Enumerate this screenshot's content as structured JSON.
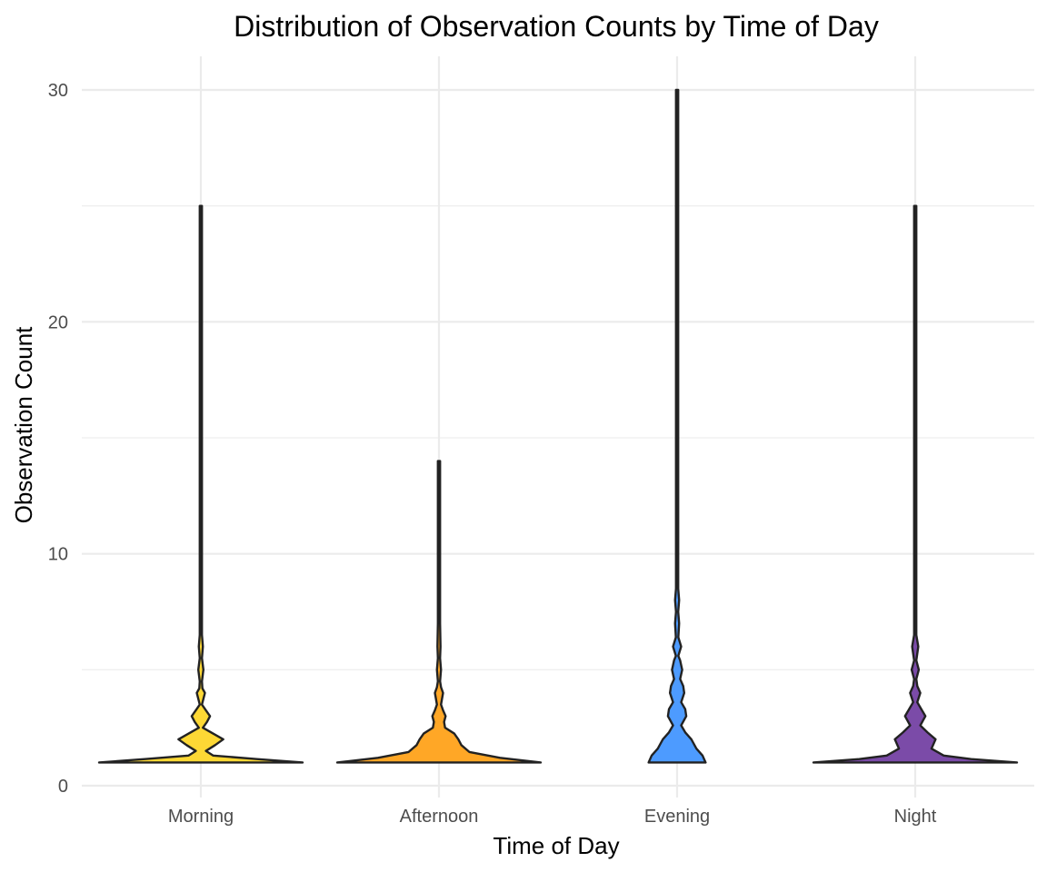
{
  "chart_data": {
    "type": "violin",
    "title": "Distribution of Observation Counts by Time of Day",
    "xlabel": "Time of Day",
    "ylabel": "Observation Count",
    "categories": [
      "Morning",
      "Afternoon",
      "Evening",
      "Night"
    ],
    "ylim": [
      -0.5,
      30
    ],
    "y_ticks": [
      0,
      10,
      20,
      30
    ],
    "grid": true,
    "legend": "none",
    "series": [
      {
        "name": "Morning",
        "color": "#FDD835",
        "min": 1,
        "max": 25,
        "density_profile": [
          [
            1,
            1.0
          ],
          [
            1.15,
            0.55
          ],
          [
            1.3,
            0.12
          ],
          [
            1.5,
            0.05
          ],
          [
            1.75,
            0.14
          ],
          [
            2,
            0.22
          ],
          [
            2.25,
            0.12
          ],
          [
            2.5,
            0.02
          ],
          [
            2.75,
            0.06
          ],
          [
            3,
            0.09
          ],
          [
            3.25,
            0.05
          ],
          [
            3.5,
            0.01
          ],
          [
            4,
            0.04
          ],
          [
            4.2,
            0.015
          ],
          [
            4.5,
            0.01
          ],
          [
            5,
            0.025
          ],
          [
            5.5,
            0.006
          ],
          [
            6,
            0.02
          ],
          [
            6.5,
            0.005
          ],
          [
            8,
            0.006
          ],
          [
            10,
            0.004
          ],
          [
            12,
            0.003
          ],
          [
            25,
            0.003
          ]
        ]
      },
      {
        "name": "Afternoon",
        "color": "#FFA726",
        "min": 1,
        "max": 14,
        "density_profile": [
          [
            1,
            1.0
          ],
          [
            1.2,
            0.6
          ],
          [
            1.45,
            0.3
          ],
          [
            1.75,
            0.22
          ],
          [
            2,
            0.19
          ],
          [
            2.25,
            0.15
          ],
          [
            2.5,
            0.06
          ],
          [
            2.75,
            0.05
          ],
          [
            3,
            0.065
          ],
          [
            3.25,
            0.04
          ],
          [
            3.5,
            0.02
          ],
          [
            4,
            0.04
          ],
          [
            4.25,
            0.02
          ],
          [
            4.5,
            0.01
          ],
          [
            5,
            0.02
          ],
          [
            5.5,
            0.005
          ],
          [
            6,
            0.015
          ],
          [
            7,
            0.004
          ],
          [
            8,
            0.005
          ],
          [
            14,
            0.003
          ]
        ]
      },
      {
        "name": "Evening",
        "color": "#4D9BFF",
        "min": 1,
        "max": 30,
        "density_profile": [
          [
            1,
            0.28
          ],
          [
            1.3,
            0.25
          ],
          [
            1.6,
            0.19
          ],
          [
            2,
            0.14
          ],
          [
            2.3,
            0.08
          ],
          [
            2.6,
            0.04
          ],
          [
            3,
            0.09
          ],
          [
            3.3,
            0.08
          ],
          [
            3.6,
            0.04
          ],
          [
            4,
            0.07
          ],
          [
            4.3,
            0.06
          ],
          [
            4.6,
            0.03
          ],
          [
            5,
            0.05
          ],
          [
            5.4,
            0.03
          ],
          [
            5.6,
            0.012
          ],
          [
            6,
            0.04
          ],
          [
            6.4,
            0.012
          ],
          [
            7,
            0.02
          ],
          [
            7.5,
            0.01
          ],
          [
            8,
            0.02
          ],
          [
            8.5,
            0.005
          ],
          [
            10,
            0.004
          ],
          [
            30,
            0.003
          ]
        ]
      },
      {
        "name": "Night",
        "color": "#7B4BA8",
        "min": 1,
        "max": 25,
        "density_profile": [
          [
            1,
            1.0
          ],
          [
            1.15,
            0.55
          ],
          [
            1.3,
            0.28
          ],
          [
            1.6,
            0.16
          ],
          [
            2,
            0.2
          ],
          [
            2.3,
            0.12
          ],
          [
            2.6,
            0.05
          ],
          [
            3,
            0.1
          ],
          [
            3.3,
            0.06
          ],
          [
            3.6,
            0.02
          ],
          [
            4,
            0.05
          ],
          [
            4.3,
            0.02
          ],
          [
            4.6,
            0.01
          ],
          [
            5,
            0.035
          ],
          [
            5.4,
            0.01
          ],
          [
            6,
            0.03
          ],
          [
            6.5,
            0.006
          ],
          [
            7,
            0.01
          ],
          [
            9,
            0.004
          ],
          [
            25,
            0.003
          ]
        ]
      }
    ]
  }
}
